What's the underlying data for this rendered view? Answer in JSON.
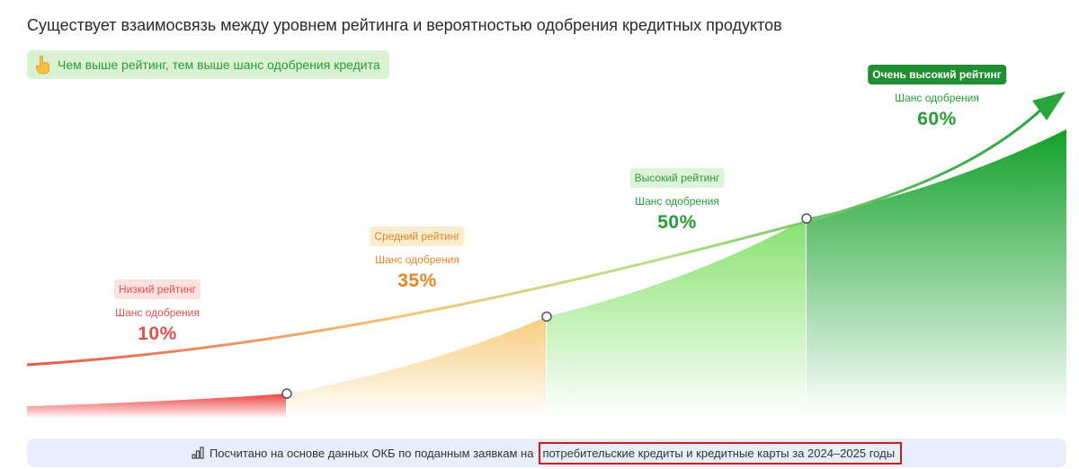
{
  "title": "Существует взаимосвязь между уровнем рейтинга и вероятностью одобрения кредитных продуктов",
  "hint": {
    "icon": "pointing-hand-icon",
    "text": "Чем выше рейтинг, тем выше шанс одобрения кредита"
  },
  "colors": {
    "low": "#ef4b4b",
    "medium": "#f6c878",
    "high": "#8ee67a",
    "very_high": "#1a9e2c",
    "arrow": "#2aa43c"
  },
  "chart_data": {
    "type": "area",
    "categories": [
      "Низкий рейтинг",
      "Средний рейтинг",
      "Высокий рейтинг",
      "Очень высокий рейтинг"
    ],
    "series": [
      {
        "values": [
          10,
          35,
          50,
          60
        ]
      }
    ],
    "labels": [
      {
        "badge": "Низкий рейтинг",
        "sub": "Шанс одобрения",
        "pct": "10%"
      },
      {
        "badge": "Средний рейтинг",
        "sub": "Шанс одобрения",
        "pct": "35%"
      },
      {
        "badge": "Высокий рейтинг",
        "sub": "Шанс одобрения",
        "pct": "50%"
      },
      {
        "badge": "Очень высокий рейтинг",
        "sub": "Шанс одобрения",
        "pct": "60%"
      }
    ]
  },
  "footer": {
    "icon": "bar-chart-icon",
    "text_pre": "Посчитано на основе данных ОКБ по поданным заявкам на",
    "text_highlight": "потребительские кредиты и кредитные карты за 2024–2025 годы"
  }
}
